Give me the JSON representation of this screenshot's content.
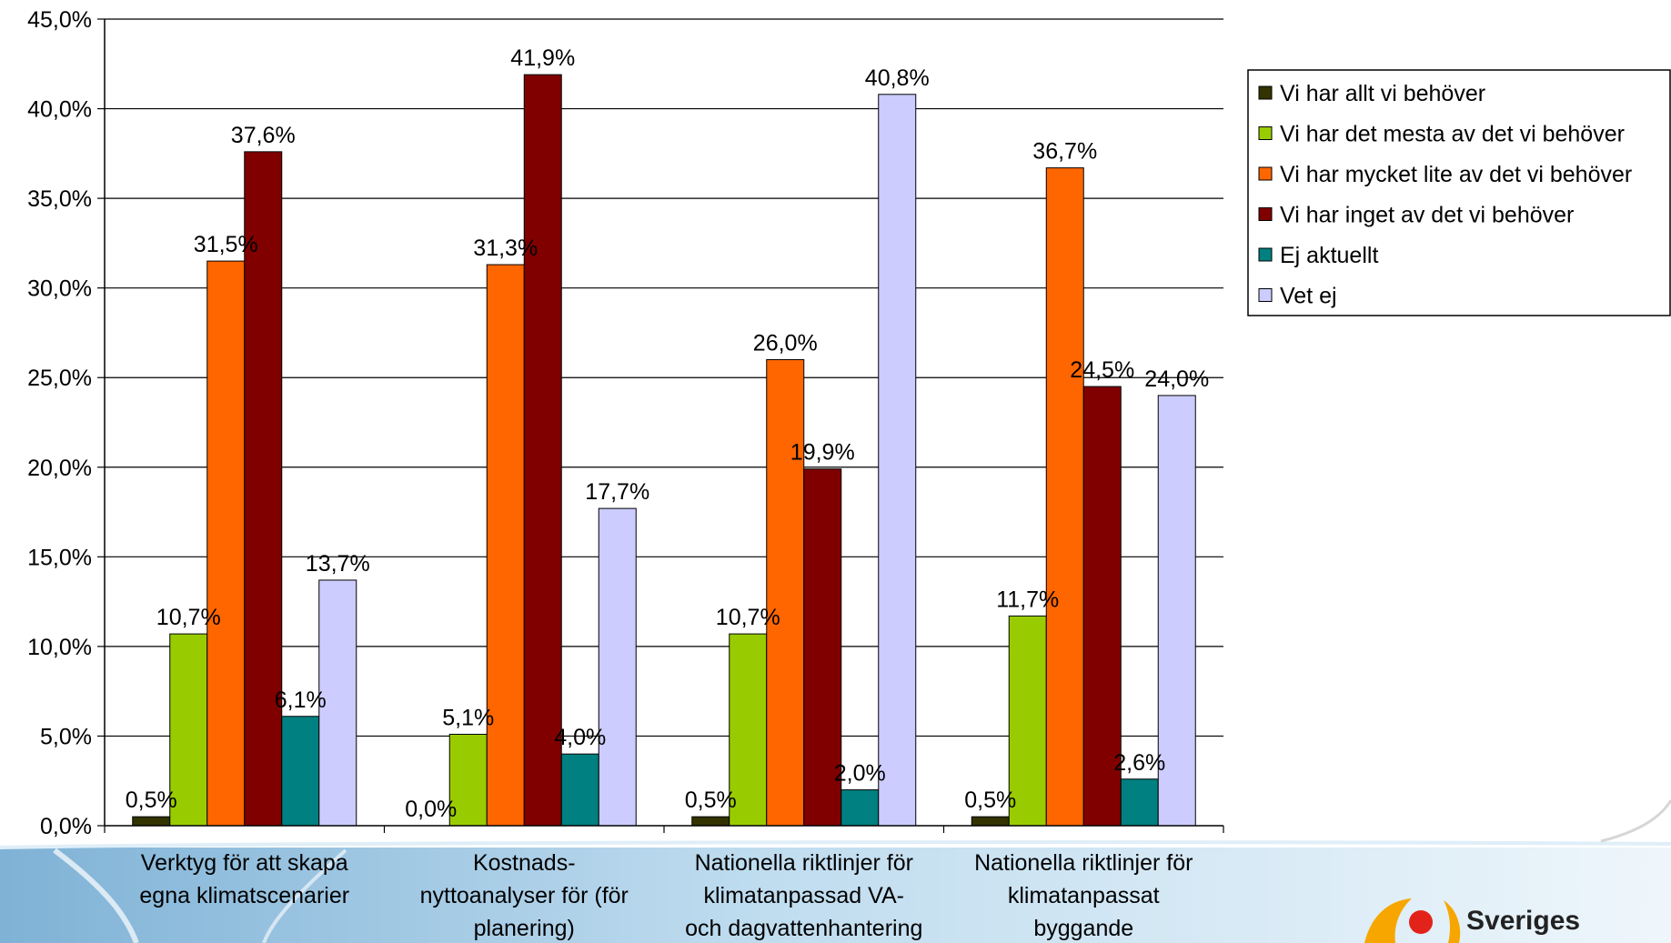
{
  "chart_data": {
    "type": "bar",
    "categories": [
      [
        "Verktyg för att skapa",
        "egna klimatscenarier"
      ],
      [
        "Kostnads-",
        "nyttoanalyser för (för",
        "planering)"
      ],
      [
        "Nationella riktlinjer för",
        "klimatanpassad VA-",
        "och dagvattenhantering"
      ],
      [
        "Nationella riktlinjer för",
        "klimatanpassat",
        "byggande"
      ]
    ],
    "series": [
      {
        "name": "Vi har allt vi behöver",
        "color": "#333300",
        "values": [
          0.5,
          0.0,
          0.5,
          0.5
        ],
        "labels": [
          "0,5%",
          "0,0%",
          "0,5%",
          "0,5%"
        ]
      },
      {
        "name": "Vi har det mesta av det vi behöver",
        "color": "#99CC00",
        "values": [
          10.7,
          5.1,
          10.7,
          11.7
        ],
        "labels": [
          "10,7%",
          "5,1%",
          "10,7%",
          "11,7%"
        ]
      },
      {
        "name": "Vi har mycket lite av det vi behöver",
        "color": "#FF6600",
        "values": [
          31.5,
          31.3,
          26.0,
          36.7
        ],
        "labels": [
          "31,5%",
          "31,3%",
          "26,0%",
          "36,7%"
        ]
      },
      {
        "name": "Vi har inget av det vi behöver",
        "color": "#800000",
        "values": [
          37.6,
          41.9,
          19.9,
          24.5
        ],
        "labels": [
          "37,6%",
          "41,9%",
          "19,9%",
          "24,5%"
        ]
      },
      {
        "name": "Ej aktuellt",
        "color": "#008080",
        "values": [
          6.1,
          4.0,
          2.0,
          2.6
        ],
        "labels": [
          "6,1%",
          "4,0%",
          "2,0%",
          "2,6%"
        ]
      },
      {
        "name": "Vet ej",
        "color": "#CCCCFF",
        "values": [
          13.7,
          17.7,
          40.8,
          24.0
        ],
        "labels": [
          "13,7%",
          "17,7%",
          "40,8%",
          "24,0%"
        ]
      }
    ],
    "y_ticks": [
      "0,0%",
      "5,0%",
      "10,0%",
      "15,0%",
      "20,0%",
      "25,0%",
      "30,0%",
      "35,0%",
      "40,0%",
      "45,0%"
    ],
    "ylim": [
      0,
      45
    ],
    "grid": true,
    "legend_position": "right",
    "title": "",
    "xlabel": "",
    "ylabel": ""
  },
  "logo": {
    "text": "Sveriges",
    "colors": [
      "#F7A600",
      "#E2231A"
    ]
  }
}
